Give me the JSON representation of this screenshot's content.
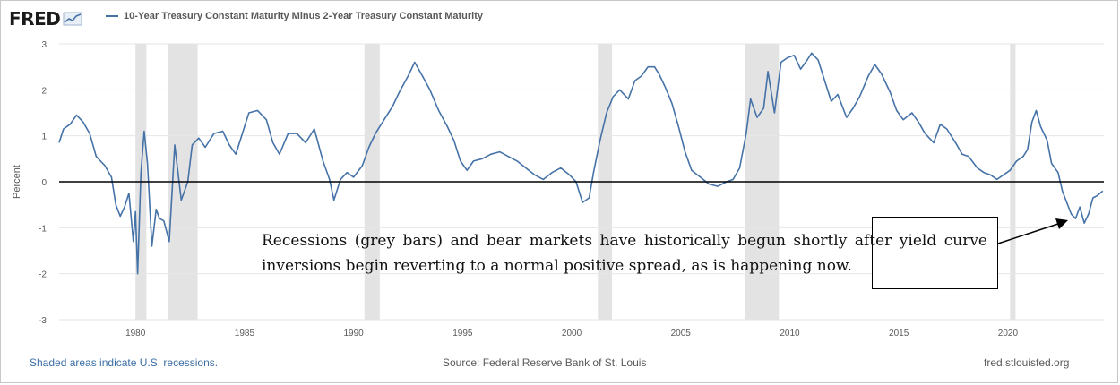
{
  "header": {
    "brand": "FRED",
    "legend_label": "10-Year Treasury Constant Maturity Minus 2-Year Treasury Constant Maturity"
  },
  "footer": {
    "left": "Shaded areas indicate U.S. recessions.",
    "center": "Source: Federal Reserve Bank of St. Louis",
    "right": "fred.stlouisfed.org"
  },
  "annotation": {
    "text": "Recessions (grey bars) and bear markets have historically begun shortly after yield curve inversions begin reverting to a normal positive spread, as is happening now."
  },
  "colors": {
    "series": "#4572a7",
    "recession": "#e3e3e3",
    "zero_line": "#000000",
    "grid": "#e6e6e6"
  },
  "chart_data": {
    "type": "line",
    "ylabel": "Percent",
    "ylim": [
      -3,
      3
    ],
    "xlim": [
      1976.5,
      2024.4
    ],
    "y_ticks": [
      -3,
      -2,
      -1,
      0,
      1,
      2,
      3
    ],
    "x_ticks": [
      1980,
      1985,
      1990,
      1995,
      2000,
      2005,
      2010,
      2015,
      2020
    ],
    "grid": "horizontal",
    "recessions": [
      [
        1980.0,
        1980.5
      ],
      [
        1981.5,
        1982.85
      ],
      [
        1990.5,
        1991.2
      ],
      [
        2001.2,
        2001.85
      ],
      [
        2007.95,
        2009.5
      ],
      [
        2020.1,
        2020.35
      ]
    ],
    "series": [
      {
        "values": [
          [
            1976.5,
            0.85
          ],
          [
            1976.7,
            1.15
          ],
          [
            1977.0,
            1.25
          ],
          [
            1977.3,
            1.45
          ],
          [
            1977.6,
            1.3
          ],
          [
            1977.9,
            1.05
          ],
          [
            1978.2,
            0.55
          ],
          [
            1978.6,
            0.35
          ],
          [
            1978.9,
            0.1
          ],
          [
            1979.1,
            -0.5
          ],
          [
            1979.3,
            -0.75
          ],
          [
            1979.5,
            -0.55
          ],
          [
            1979.7,
            -0.25
          ],
          [
            1979.9,
            -1.3
          ],
          [
            1980.0,
            -0.65
          ],
          [
            1980.1,
            -2.0
          ],
          [
            1980.25,
            0.2
          ],
          [
            1980.4,
            1.1
          ],
          [
            1980.55,
            0.4
          ],
          [
            1980.75,
            -1.4
          ],
          [
            1980.95,
            -0.6
          ],
          [
            1981.1,
            -0.8
          ],
          [
            1981.3,
            -0.85
          ],
          [
            1981.55,
            -1.3
          ],
          [
            1981.8,
            0.8
          ],
          [
            1982.1,
            -0.4
          ],
          [
            1982.4,
            0.0
          ],
          [
            1982.6,
            0.8
          ],
          [
            1982.9,
            0.95
          ],
          [
            1983.2,
            0.75
          ],
          [
            1983.6,
            1.05
          ],
          [
            1984.0,
            1.1
          ],
          [
            1984.3,
            0.8
          ],
          [
            1984.6,
            0.6
          ],
          [
            1984.9,
            1.05
          ],
          [
            1985.2,
            1.5
          ],
          [
            1985.6,
            1.55
          ],
          [
            1986.0,
            1.35
          ],
          [
            1986.3,
            0.85
          ],
          [
            1986.6,
            0.6
          ],
          [
            1987.0,
            1.05
          ],
          [
            1987.4,
            1.05
          ],
          [
            1987.8,
            0.85
          ],
          [
            1988.2,
            1.15
          ],
          [
            1988.6,
            0.45
          ],
          [
            1988.9,
            0.05
          ],
          [
            1989.1,
            -0.4
          ],
          [
            1989.4,
            0.05
          ],
          [
            1989.7,
            0.2
          ],
          [
            1990.0,
            0.1
          ],
          [
            1990.4,
            0.35
          ],
          [
            1990.7,
            0.75
          ],
          [
            1991.0,
            1.05
          ],
          [
            1991.4,
            1.35
          ],
          [
            1991.8,
            1.65
          ],
          [
            1992.1,
            1.95
          ],
          [
            1992.5,
            2.3
          ],
          [
            1992.8,
            2.6
          ],
          [
            1993.1,
            2.35
          ],
          [
            1993.5,
            2.0
          ],
          [
            1993.9,
            1.55
          ],
          [
            1994.3,
            1.2
          ],
          [
            1994.6,
            0.9
          ],
          [
            1994.9,
            0.45
          ],
          [
            1995.2,
            0.25
          ],
          [
            1995.5,
            0.45
          ],
          [
            1995.9,
            0.5
          ],
          [
            1996.3,
            0.6
          ],
          [
            1996.7,
            0.65
          ],
          [
            1997.1,
            0.55
          ],
          [
            1997.5,
            0.45
          ],
          [
            1997.9,
            0.3
          ],
          [
            1998.3,
            0.15
          ],
          [
            1998.7,
            0.05
          ],
          [
            1999.1,
            0.2
          ],
          [
            1999.5,
            0.3
          ],
          [
            1999.9,
            0.15
          ],
          [
            2000.2,
            0.0
          ],
          [
            2000.5,
            -0.45
          ],
          [
            2000.8,
            -0.35
          ],
          [
            2001.0,
            0.2
          ],
          [
            2001.3,
            0.9
          ],
          [
            2001.6,
            1.5
          ],
          [
            2001.9,
            1.85
          ],
          [
            2002.2,
            2.0
          ],
          [
            2002.6,
            1.8
          ],
          [
            2002.9,
            2.2
          ],
          [
            2003.2,
            2.3
          ],
          [
            2003.5,
            2.5
          ],
          [
            2003.8,
            2.5
          ],
          [
            2004.0,
            2.35
          ],
          [
            2004.3,
            2.05
          ],
          [
            2004.6,
            1.7
          ],
          [
            2004.9,
            1.2
          ],
          [
            2005.2,
            0.65
          ],
          [
            2005.5,
            0.25
          ],
          [
            2005.9,
            0.1
          ],
          [
            2006.3,
            -0.05
          ],
          [
            2006.7,
            -0.1
          ],
          [
            2007.1,
            0.0
          ],
          [
            2007.4,
            0.05
          ],
          [
            2007.7,
            0.3
          ],
          [
            2008.0,
            1.05
          ],
          [
            2008.2,
            1.8
          ],
          [
            2008.5,
            1.4
          ],
          [
            2008.8,
            1.6
          ],
          [
            2009.0,
            2.4
          ],
          [
            2009.3,
            1.5
          ],
          [
            2009.6,
            2.6
          ],
          [
            2009.9,
            2.7
          ],
          [
            2010.2,
            2.75
          ],
          [
            2010.5,
            2.45
          ],
          [
            2010.8,
            2.65
          ],
          [
            2011.0,
            2.8
          ],
          [
            2011.3,
            2.65
          ],
          [
            2011.6,
            2.2
          ],
          [
            2011.9,
            1.75
          ],
          [
            2012.2,
            1.9
          ],
          [
            2012.6,
            1.4
          ],
          [
            2012.9,
            1.6
          ],
          [
            2013.2,
            1.85
          ],
          [
            2013.6,
            2.3
          ],
          [
            2013.9,
            2.55
          ],
          [
            2014.2,
            2.35
          ],
          [
            2014.6,
            1.95
          ],
          [
            2014.9,
            1.55
          ],
          [
            2015.2,
            1.35
          ],
          [
            2015.6,
            1.5
          ],
          [
            2015.9,
            1.3
          ],
          [
            2016.2,
            1.05
          ],
          [
            2016.6,
            0.85
          ],
          [
            2016.9,
            1.25
          ],
          [
            2017.2,
            1.15
          ],
          [
            2017.6,
            0.85
          ],
          [
            2017.9,
            0.6
          ],
          [
            2018.2,
            0.55
          ],
          [
            2018.6,
            0.3
          ],
          [
            2018.9,
            0.2
          ],
          [
            2019.2,
            0.15
          ],
          [
            2019.5,
            0.05
          ],
          [
            2019.8,
            0.15
          ],
          [
            2020.1,
            0.25
          ],
          [
            2020.4,
            0.45
          ],
          [
            2020.7,
            0.55
          ],
          [
            2020.9,
            0.7
          ],
          [
            2021.1,
            1.3
          ],
          [
            2021.3,
            1.55
          ],
          [
            2021.5,
            1.2
          ],
          [
            2021.8,
            0.9
          ],
          [
            2022.0,
            0.4
          ],
          [
            2022.3,
            0.2
          ],
          [
            2022.5,
            -0.2
          ],
          [
            2022.7,
            -0.45
          ],
          [
            2022.9,
            -0.7
          ],
          [
            2023.1,
            -0.8
          ],
          [
            2023.3,
            -0.55
          ],
          [
            2023.5,
            -0.9
          ],
          [
            2023.7,
            -0.7
          ],
          [
            2023.9,
            -0.35
          ],
          [
            2024.1,
            -0.3
          ],
          [
            2024.35,
            -0.2
          ]
        ]
      }
    ]
  }
}
